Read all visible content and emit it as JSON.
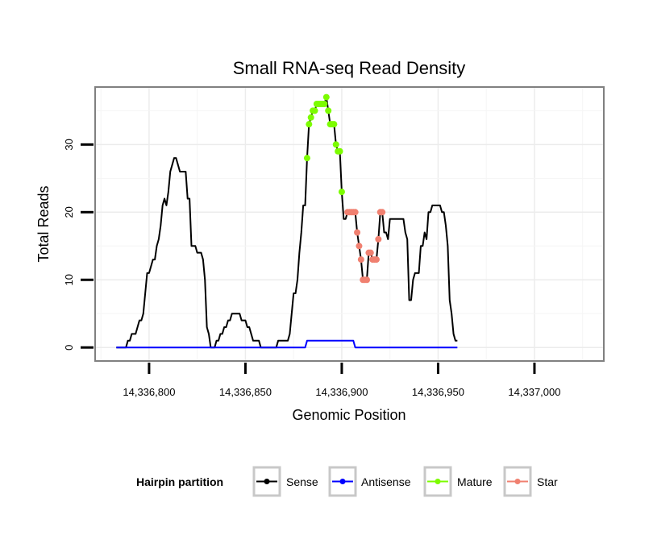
{
  "chart_data": {
    "type": "line",
    "title": "Small RNA-seq Read Density",
    "xlabel": "Genomic Position",
    "ylabel": "Total Reads",
    "xlim": [
      14336772,
      14337036
    ],
    "ylim": [
      -2,
      38.5
    ],
    "x_ticks": [
      14336800,
      14336850,
      14336900,
      14336950,
      14337000
    ],
    "x_tick_labels": [
      "14,336,800",
      "14,336,850",
      "14,336,900",
      "14,336,950",
      "14,337,000"
    ],
    "y_ticks": [
      0,
      10,
      20,
      30
    ],
    "y_tick_labels": [
      "0",
      "10",
      "20",
      "30"
    ],
    "grid": true,
    "legend": {
      "title": "Hairpin partition",
      "position": "bottom",
      "entries": [
        {
          "label": "Sense",
          "color": "#000000"
        },
        {
          "label": "Antisense",
          "color": "#0000ff"
        },
        {
          "label": "Mature",
          "color": "#7cfc00"
        },
        {
          "label": "Star",
          "color": "#f08070"
        }
      ]
    },
    "series": [
      {
        "name": "Sense",
        "color": "#000000",
        "points": [
          [
            14336783,
            0
          ],
          [
            14336788,
            0
          ],
          [
            14336789,
            1
          ],
          [
            14336790,
            1
          ],
          [
            14336791,
            2
          ],
          [
            14336792,
            2
          ],
          [
            14336793,
            2
          ],
          [
            14336794,
            3
          ],
          [
            14336795,
            4
          ],
          [
            14336796,
            4
          ],
          [
            14336797,
            5
          ],
          [
            14336798,
            8
          ],
          [
            14336799,
            11
          ],
          [
            14336800,
            11
          ],
          [
            14336801,
            12
          ],
          [
            14336802,
            13
          ],
          [
            14336803,
            13
          ],
          [
            14336804,
            15
          ],
          [
            14336805,
            16
          ],
          [
            14336806,
            18
          ],
          [
            14336807,
            21
          ],
          [
            14336808,
            22
          ],
          [
            14336809,
            21
          ],
          [
            14336810,
            23
          ],
          [
            14336811,
            26
          ],
          [
            14336812,
            27
          ],
          [
            14336813,
            28
          ],
          [
            14336814,
            28
          ],
          [
            14336815,
            27
          ],
          [
            14336816,
            26
          ],
          [
            14336817,
            26
          ],
          [
            14336818,
            26
          ],
          [
            14336819,
            26
          ],
          [
            14336820,
            22
          ],
          [
            14336821,
            22
          ],
          [
            14336822,
            15
          ],
          [
            14336823,
            15
          ],
          [
            14336824,
            15
          ],
          [
            14336825,
            14
          ],
          [
            14336826,
            14
          ],
          [
            14336827,
            14
          ],
          [
            14336828,
            13
          ],
          [
            14336829,
            10
          ],
          [
            14336830,
            3
          ],
          [
            14336831,
            2
          ],
          [
            14336832,
            0
          ],
          [
            14336834,
            0
          ],
          [
            14336835,
            1
          ],
          [
            14336836,
            1
          ],
          [
            14336837,
            2
          ],
          [
            14336838,
            2
          ],
          [
            14336839,
            3
          ],
          [
            14336840,
            3
          ],
          [
            14336841,
            4
          ],
          [
            14336842,
            4
          ],
          [
            14336843,
            5
          ],
          [
            14336844,
            5
          ],
          [
            14336845,
            5
          ],
          [
            14336846,
            5
          ],
          [
            14336847,
            5
          ],
          [
            14336848,
            4
          ],
          [
            14336849,
            4
          ],
          [
            14336850,
            4
          ],
          [
            14336851,
            3
          ],
          [
            14336852,
            3
          ],
          [
            14336853,
            2
          ],
          [
            14336854,
            1
          ],
          [
            14336855,
            1
          ],
          [
            14336856,
            1
          ],
          [
            14336857,
            1
          ],
          [
            14336858,
            0
          ],
          [
            14336866,
            0
          ],
          [
            14336867,
            1
          ],
          [
            14336868,
            1
          ],
          [
            14336869,
            1
          ],
          [
            14336870,
            1
          ],
          [
            14336871,
            1
          ],
          [
            14336872,
            1
          ],
          [
            14336873,
            2
          ],
          [
            14336874,
            5
          ],
          [
            14336875,
            8
          ],
          [
            14336876,
            8
          ],
          [
            14336877,
            10
          ],
          [
            14336878,
            14
          ],
          [
            14336879,
            17
          ],
          [
            14336880,
            21
          ],
          [
            14336881,
            21
          ],
          [
            14336882,
            28
          ],
          [
            14336883,
            33
          ],
          [
            14336884,
            34
          ],
          [
            14336885,
            35
          ],
          [
            14336886,
            35
          ],
          [
            14336887,
            36
          ],
          [
            14336888,
            36
          ],
          [
            14336889,
            36
          ],
          [
            14336890,
            36
          ],
          [
            14336891,
            36
          ],
          [
            14336892,
            37
          ],
          [
            14336893,
            35
          ],
          [
            14336894,
            33
          ],
          [
            14336895,
            33
          ],
          [
            14336896,
            33
          ],
          [
            14336897,
            30
          ],
          [
            14336898,
            29
          ],
          [
            14336899,
            29
          ],
          [
            14336900,
            23
          ],
          [
            14336901,
            19
          ],
          [
            14336902,
            19
          ],
          [
            14336903,
            20
          ],
          [
            14336904,
            20
          ],
          [
            14336905,
            20
          ],
          [
            14336906,
            20
          ],
          [
            14336907,
            20
          ],
          [
            14336908,
            17
          ],
          [
            14336909,
            15
          ],
          [
            14336910,
            13
          ],
          [
            14336911,
            10
          ],
          [
            14336912,
            10
          ],
          [
            14336913,
            10
          ],
          [
            14336914,
            14
          ],
          [
            14336915,
            14
          ],
          [
            14336916,
            13
          ],
          [
            14336917,
            13
          ],
          [
            14336918,
            13
          ],
          [
            14336919,
            16
          ],
          [
            14336920,
            20
          ],
          [
            14336921,
            20
          ],
          [
            14336922,
            17
          ],
          [
            14336923,
            17
          ],
          [
            14336924,
            16
          ],
          [
            14336925,
            19
          ],
          [
            14336926,
            19
          ],
          [
            14336927,
            19
          ],
          [
            14336928,
            19
          ],
          [
            14336929,
            19
          ],
          [
            14336930,
            19
          ],
          [
            14336931,
            19
          ],
          [
            14336932,
            19
          ],
          [
            14336933,
            17
          ],
          [
            14336934,
            16
          ],
          [
            14336935,
            7
          ],
          [
            14336936,
            7
          ],
          [
            14336937,
            10
          ],
          [
            14336938,
            11
          ],
          [
            14336939,
            11
          ],
          [
            14336940,
            11
          ],
          [
            14336941,
            15
          ],
          [
            14336942,
            15
          ],
          [
            14336943,
            17
          ],
          [
            14336944,
            16
          ],
          [
            14336945,
            20
          ],
          [
            14336946,
            20
          ],
          [
            14336947,
            21
          ],
          [
            14336948,
            21
          ],
          [
            14336949,
            21
          ],
          [
            14336950,
            21
          ],
          [
            14336951,
            21
          ],
          [
            14336952,
            20
          ],
          [
            14336953,
            20
          ],
          [
            14336954,
            18
          ],
          [
            14336955,
            15
          ],
          [
            14336956,
            7
          ],
          [
            14336957,
            5
          ],
          [
            14336958,
            2
          ],
          [
            14336959,
            1
          ],
          [
            14336960,
            1
          ]
        ]
      },
      {
        "name": "Antisense",
        "color": "#0000ff",
        "points": [
          [
            14336783,
            0
          ],
          [
            14336881,
            0
          ],
          [
            14336882,
            1
          ],
          [
            14336906,
            1
          ],
          [
            14336907,
            0
          ],
          [
            14336960,
            0
          ]
        ]
      },
      {
        "name": "Mature",
        "color": "#7cfc00",
        "points": [
          [
            14336882,
            28
          ],
          [
            14336883,
            33
          ],
          [
            14336884,
            34
          ],
          [
            14336885,
            35
          ],
          [
            14336886,
            35
          ],
          [
            14336887,
            36
          ],
          [
            14336888,
            36
          ],
          [
            14336889,
            36
          ],
          [
            14336890,
            36
          ],
          [
            14336891,
            36
          ],
          [
            14336892,
            37
          ],
          [
            14336893,
            35
          ],
          [
            14336894,
            33
          ],
          [
            14336895,
            33
          ],
          [
            14336896,
            33
          ],
          [
            14336897,
            30
          ],
          [
            14336898,
            29
          ],
          [
            14336899,
            29
          ],
          [
            14336900,
            23
          ]
        ]
      },
      {
        "name": "Star",
        "color": "#f08070",
        "points": [
          [
            14336903,
            20
          ],
          [
            14336904,
            20
          ],
          [
            14336905,
            20
          ],
          [
            14336906,
            20
          ],
          [
            14336907,
            20
          ],
          [
            14336908,
            17
          ],
          [
            14336909,
            15
          ],
          [
            14336910,
            13
          ],
          [
            14336911,
            10
          ],
          [
            14336912,
            10
          ],
          [
            14336913,
            10
          ],
          [
            14336914,
            14
          ],
          [
            14336915,
            14
          ],
          [
            14336916,
            13
          ],
          [
            14336917,
            13
          ],
          [
            14336918,
            13
          ],
          [
            14336919,
            16
          ],
          [
            14336920,
            20
          ],
          [
            14336921,
            20
          ]
        ]
      }
    ]
  }
}
